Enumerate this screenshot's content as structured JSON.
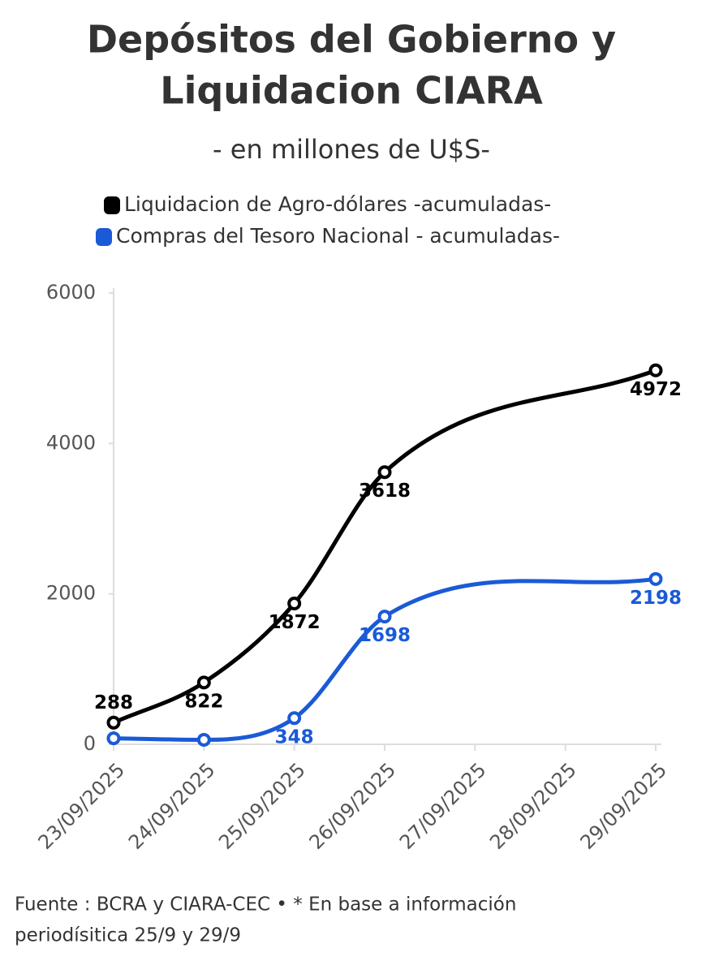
{
  "chart_data": {
    "type": "line",
    "title": [
      "Depósitos del Gobierno y",
      "Liquidacion CIARA"
    ],
    "subtitle": "- en millones de U$S-",
    "x": [
      "23/09/2025",
      "24/09/2025",
      "25/09/2025",
      "26/09/2025",
      "27/09/2025",
      "28/09/2025",
      "29/09/2025"
    ],
    "series": [
      {
        "name": "Liquidacion de Agro-dólares -acumuladas-",
        "color": "#000000",
        "x": [
          "23/09/2025",
          "24/09/2025",
          "25/09/2025",
          "26/09/2025",
          "29/09/2025"
        ],
        "values": [
          288,
          822,
          1872,
          3618,
          4972
        ]
      },
      {
        "name": "Compras del Tesoro Nacional - acumuladas-",
        "color": "#1a5ad7",
        "x": [
          "23/09/2025",
          "24/09/2025",
          "25/09/2025",
          "26/09/2025",
          "29/09/2025"
        ],
        "values": [
          80,
          60,
          348,
          1698,
          2198
        ],
        "value_labels": [
          null,
          null,
          "348",
          "1698",
          "2198"
        ]
      }
    ],
    "ylim": [
      0,
      6000
    ],
    "yticks": [
      0,
      2000,
      4000,
      6000
    ],
    "footnote": [
      "Fuente : BCRA y CIARA-CEC • * En base a información",
      "periodísitica 25/9 y 29/9"
    ]
  }
}
